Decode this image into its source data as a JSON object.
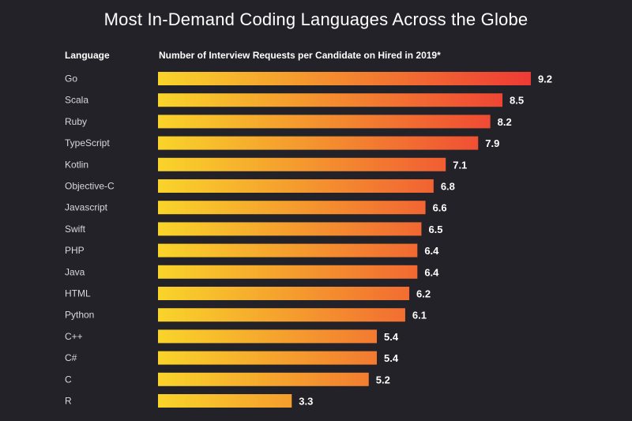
{
  "chart_data": {
    "type": "bar",
    "orientation": "horizontal",
    "title": "Most In-Demand Coding Languages Across the Globe",
    "category_header": "Language",
    "value_header": "Number of Interview Requests per Candidate on Hired in 2019*",
    "categories": [
      "Go",
      "Scala",
      "Ruby",
      "TypeScript",
      "Kotlin",
      "Objective-C",
      "Javascript",
      "Swift",
      "PHP",
      "Java",
      "HTML",
      "Python",
      "C++",
      "C#",
      "C",
      "R"
    ],
    "values": [
      9.2,
      8.5,
      8.2,
      7.9,
      7.1,
      6.8,
      6.6,
      6.5,
      6.4,
      6.4,
      6.2,
      6.1,
      5.4,
      5.4,
      5.2,
      3.3
    ],
    "value_labels": [
      "9.2",
      "8.5",
      "8.2",
      "7.9",
      "7.1",
      "6.8",
      "6.6",
      "6.5",
      "6.4",
      "6.4",
      "6.2",
      "6.1",
      "5.4",
      "5.4",
      "5.2",
      "3.3"
    ],
    "grid": false,
    "legend": "none",
    "colors": {
      "background": "#222228",
      "bar_start": "#f9d42a",
      "bar_end": "#ee3a35",
      "text": "#ffffff",
      "category_text": "#d8d8dc"
    }
  }
}
